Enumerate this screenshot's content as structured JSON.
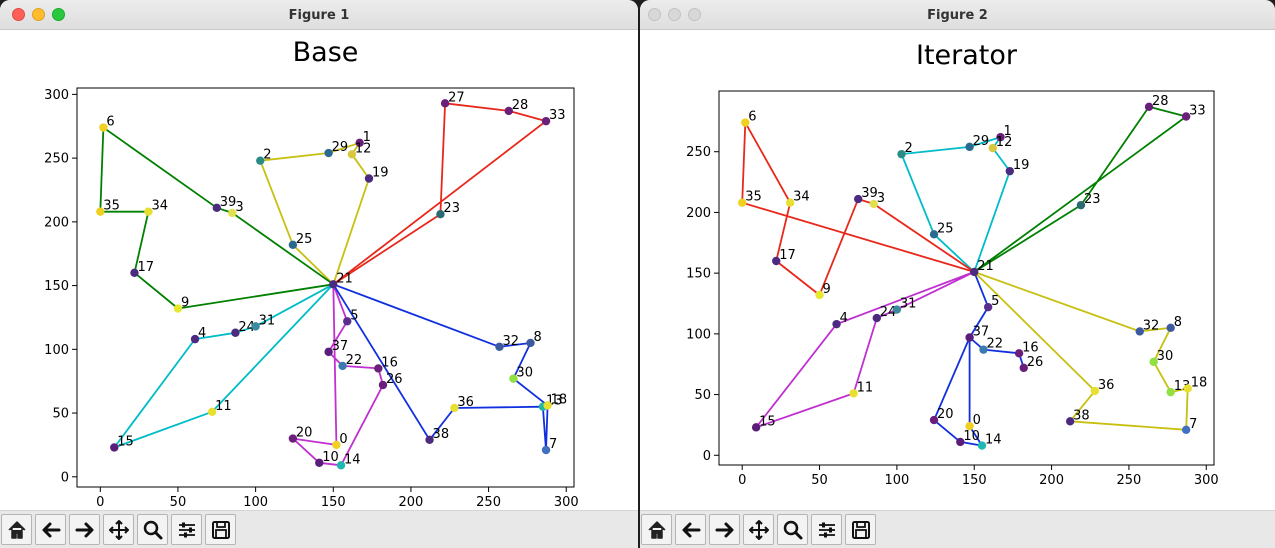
{
  "windows": [
    {
      "id": "win1",
      "title": "Figure 1",
      "active": true,
      "toolbar": [
        "home-icon",
        "back-icon",
        "forward-icon",
        "pan-icon",
        "zoom-icon",
        "configure-subplots-icon",
        "save-icon"
      ],
      "chart_data": {
        "type": "scatter",
        "title": "Base",
        "xlabel": "",
        "ylabel": "",
        "xlim": [
          -15,
          305
        ],
        "ylim": [
          -8,
          305
        ],
        "xticks": [
          0,
          50,
          100,
          150,
          200,
          250,
          300
        ],
        "yticks": [
          0,
          50,
          100,
          150,
          200,
          250,
          300
        ],
        "grid": false,
        "depot": "21",
        "points": [
          {
            "label": "0",
            "x": 152,
            "y": 25,
            "color": "#f0d020"
          },
          {
            "label": "1",
            "x": 167,
            "y": 262,
            "color": "#6a1f7a"
          },
          {
            "label": "2",
            "x": 103,
            "y": 248,
            "color": "#2a8c86"
          },
          {
            "label": "3",
            "x": 85,
            "y": 207,
            "color": "#e0e050"
          },
          {
            "label": "4",
            "x": 61,
            "y": 108,
            "color": "#4b2a80"
          },
          {
            "label": "5",
            "x": 159,
            "y": 122,
            "color": "#5a2e8c"
          },
          {
            "label": "6",
            "x": 2,
            "y": 274,
            "color": "#f0d020"
          },
          {
            "label": "7",
            "x": 287,
            "y": 21,
            "color": "#4070c0"
          },
          {
            "label": "8",
            "x": 277,
            "y": 105,
            "color": "#3b5aa0"
          },
          {
            "label": "9",
            "x": 50,
            "y": 132,
            "color": "#e8e830"
          },
          {
            "label": "10",
            "x": 141,
            "y": 11,
            "color": "#5a1e7a"
          },
          {
            "label": "11",
            "x": 72,
            "y": 51,
            "color": "#e8e030"
          },
          {
            "label": "12",
            "x": 162,
            "y": 253,
            "color": "#d8c840"
          },
          {
            "label": "13",
            "x": 285,
            "y": 55,
            "color": "#20b8a0"
          },
          {
            "label": "14",
            "x": 155,
            "y": 9,
            "color": "#20b8b0"
          },
          {
            "label": "15",
            "x": 9,
            "y": 23,
            "color": "#5a1e7a"
          },
          {
            "label": "16",
            "x": 179,
            "y": 85,
            "color": "#6a1f7a"
          },
          {
            "label": "17",
            "x": 22,
            "y": 160,
            "color": "#4b2a80"
          },
          {
            "label": "18",
            "x": 288,
            "y": 56,
            "color": "#e8e030"
          },
          {
            "label": "19",
            "x": 173,
            "y": 234,
            "color": "#4b2a80"
          },
          {
            "label": "20",
            "x": 124,
            "y": 30,
            "color": "#6a1f7a"
          },
          {
            "label": "21",
            "x": 150,
            "y": 151,
            "color": "#4b2a80"
          },
          {
            "label": "22",
            "x": 156,
            "y": 87,
            "color": "#3b7ab0"
          },
          {
            "label": "23",
            "x": 219,
            "y": 206,
            "color": "#2a6a70"
          },
          {
            "label": "24",
            "x": 87,
            "y": 113,
            "color": "#4b2a80"
          },
          {
            "label": "25",
            "x": 124,
            "y": 182,
            "color": "#2a6a90"
          },
          {
            "label": "26",
            "x": 182,
            "y": 72,
            "color": "#6a1f7a"
          },
          {
            "label": "27",
            "x": 222,
            "y": 293,
            "color": "#6a1f7a"
          },
          {
            "label": "28",
            "x": 263,
            "y": 287,
            "color": "#6a1f7a"
          },
          {
            "label": "29",
            "x": 147,
            "y": 254,
            "color": "#2a6a90"
          },
          {
            "label": "30",
            "x": 266,
            "y": 77,
            "color": "#90e040"
          },
          {
            "label": "31",
            "x": 100,
            "y": 118,
            "color": "#3b8aa0"
          },
          {
            "label": "32",
            "x": 257,
            "y": 102,
            "color": "#3b5aa0"
          },
          {
            "label": "33",
            "x": 287,
            "y": 279,
            "color": "#6a1f7a"
          },
          {
            "label": "34",
            "x": 31,
            "y": 208,
            "color": "#e8e030"
          },
          {
            "label": "35",
            "x": 0,
            "y": 208,
            "color": "#f0d020"
          },
          {
            "label": "36",
            "x": 228,
            "y": 54,
            "color": "#e8e030"
          },
          {
            "label": "37",
            "x": 147,
            "y": 98,
            "color": "#5a1e7a"
          },
          {
            "label": "38",
            "x": 212,
            "y": 29,
            "color": "#4b2a80"
          },
          {
            "label": "39",
            "x": 75,
            "y": 211,
            "color": "#4b2a80"
          }
        ],
        "routes": [
          {
            "color": "#e8281a",
            "stops": [
              "21",
              "23",
              "27",
              "28",
              "33",
              "21"
            ]
          },
          {
            "color": "#c8c010",
            "stops": [
              "21",
              "19",
              "12",
              "1",
              "29",
              "2",
              "25",
              "21"
            ]
          },
          {
            "color": "#008000",
            "stops": [
              "21",
              "3",
              "39",
              "6",
              "35",
              "34",
              "17",
              "9",
              "21"
            ]
          },
          {
            "color": "#00bcc8",
            "stops": [
              "21",
              "31",
              "24",
              "4",
              "15",
              "11",
              "21"
            ]
          },
          {
            "color": "#c030d0",
            "stops": [
              "21",
              "5",
              "37",
              "22",
              "16",
              "26",
              "14",
              "10",
              "20",
              "0",
              "21"
            ]
          },
          {
            "color": "#1030e0",
            "stops": [
              "21",
              "32",
              "8",
              "30",
              "18",
              "7",
              "13",
              "36",
              "38",
              "21"
            ]
          }
        ]
      }
    },
    {
      "id": "win2",
      "title": "Figure 2",
      "active": false,
      "toolbar": [
        "home-icon",
        "back-icon",
        "forward-icon",
        "pan-icon",
        "zoom-icon",
        "configure-subplots-icon",
        "save-icon"
      ],
      "chart_data": {
        "type": "scatter",
        "title": "Iterator",
        "xlabel": "",
        "ylabel": "",
        "xlim": [
          -15,
          305
        ],
        "ylim": [
          -8,
          300
        ],
        "xticks": [
          0,
          50,
          100,
          150,
          200,
          250,
          300
        ],
        "yticks": [
          0,
          50,
          100,
          150,
          200,
          250
        ],
        "grid": false,
        "depot": "21",
        "points": [
          {
            "label": "0",
            "x": 147,
            "y": 24,
            "color": "#f0d020"
          },
          {
            "label": "1",
            "x": 167,
            "y": 262,
            "color": "#6a1f7a"
          },
          {
            "label": "2",
            "x": 103,
            "y": 248,
            "color": "#2a8c86"
          },
          {
            "label": "3",
            "x": 85,
            "y": 207,
            "color": "#e0e050"
          },
          {
            "label": "4",
            "x": 61,
            "y": 108,
            "color": "#4b2a80"
          },
          {
            "label": "5",
            "x": 159,
            "y": 122,
            "color": "#5a2e8c"
          },
          {
            "label": "6",
            "x": 2,
            "y": 274,
            "color": "#f0d020"
          },
          {
            "label": "7",
            "x": 287,
            "y": 21,
            "color": "#4070c0"
          },
          {
            "label": "8",
            "x": 277,
            "y": 105,
            "color": "#3b5aa0"
          },
          {
            "label": "9",
            "x": 50,
            "y": 132,
            "color": "#e8e830"
          },
          {
            "label": "10",
            "x": 141,
            "y": 11,
            "color": "#5a1e7a"
          },
          {
            "label": "11",
            "x": 72,
            "y": 51,
            "color": "#e8e030"
          },
          {
            "label": "12",
            "x": 162,
            "y": 253,
            "color": "#d8c840"
          },
          {
            "label": "13",
            "x": 277,
            "y": 52,
            "color": "#90e040"
          },
          {
            "label": "14",
            "x": 155,
            "y": 8,
            "color": "#20b8b0"
          },
          {
            "label": "15",
            "x": 9,
            "y": 23,
            "color": "#5a1e7a"
          },
          {
            "label": "16",
            "x": 179,
            "y": 84,
            "color": "#6a1f7a"
          },
          {
            "label": "17",
            "x": 22,
            "y": 160,
            "color": "#4b2a80"
          },
          {
            "label": "18",
            "x": 288,
            "y": 55,
            "color": "#e8e030"
          },
          {
            "label": "19",
            "x": 173,
            "y": 234,
            "color": "#4b2a80"
          },
          {
            "label": "20",
            "x": 124,
            "y": 29,
            "color": "#6a1f7a"
          },
          {
            "label": "21",
            "x": 150,
            "y": 151,
            "color": "#4b2a80"
          },
          {
            "label": "22",
            "x": 156,
            "y": 87,
            "color": "#3b7ab0"
          },
          {
            "label": "23",
            "x": 219,
            "y": 206,
            "color": "#2a6a70"
          },
          {
            "label": "24",
            "x": 87,
            "y": 113,
            "color": "#4b2a80"
          },
          {
            "label": "25",
            "x": 124,
            "y": 182,
            "color": "#2a6a90"
          },
          {
            "label": "26",
            "x": 182,
            "y": 72,
            "color": "#6a1f7a"
          },
          {
            "label": "28",
            "x": 263,
            "y": 287,
            "color": "#6a1f7a"
          },
          {
            "label": "29",
            "x": 147,
            "y": 254,
            "color": "#2a6a90"
          },
          {
            "label": "30",
            "x": 266,
            "y": 77,
            "color": "#90e040"
          },
          {
            "label": "31",
            "x": 100,
            "y": 120,
            "color": "#3b8aa0"
          },
          {
            "label": "32",
            "x": 257,
            "y": 102,
            "color": "#3b5aa0"
          },
          {
            "label": "33",
            "x": 287,
            "y": 279,
            "color": "#6a1f7a"
          },
          {
            "label": "34",
            "x": 31,
            "y": 208,
            "color": "#e8e030"
          },
          {
            "label": "35",
            "x": 0,
            "y": 208,
            "color": "#f0d020"
          },
          {
            "label": "36",
            "x": 228,
            "y": 53,
            "color": "#e8e030"
          },
          {
            "label": "37",
            "x": 147,
            "y": 97,
            "color": "#5a1e7a"
          },
          {
            "label": "38",
            "x": 212,
            "y": 28,
            "color": "#4b2a80"
          },
          {
            "label": "39",
            "x": 75,
            "y": 211,
            "color": "#4b2a80"
          }
        ],
        "routes": [
          {
            "color": "#008000",
            "stops": [
              "21",
              "23",
              "28",
              "33",
              "21"
            ]
          },
          {
            "color": "#00bcc8",
            "stops": [
              "21",
              "19",
              "12",
              "1",
              "29",
              "2",
              "25",
              "21"
            ]
          },
          {
            "color": "#e8281a",
            "stops": [
              "21",
              "35",
              "6",
              "34",
              "17",
              "9",
              "39",
              "3",
              "21"
            ]
          },
          {
            "color": "#c030d0",
            "stops": [
              "21",
              "31",
              "24",
              "11",
              "15",
              "4",
              "21"
            ]
          },
          {
            "color": "#1030e0",
            "stops": [
              "21",
              "5",
              "37",
              "20",
              "10",
              "14",
              "0",
              "37",
              "22",
              "16",
              "26"
            ]
          },
          {
            "color": "#c8c010",
            "stops": [
              "21",
              "32",
              "8",
              "30",
              "13",
              "18",
              "7",
              "38",
              "36",
              "21"
            ]
          }
        ]
      }
    }
  ]
}
